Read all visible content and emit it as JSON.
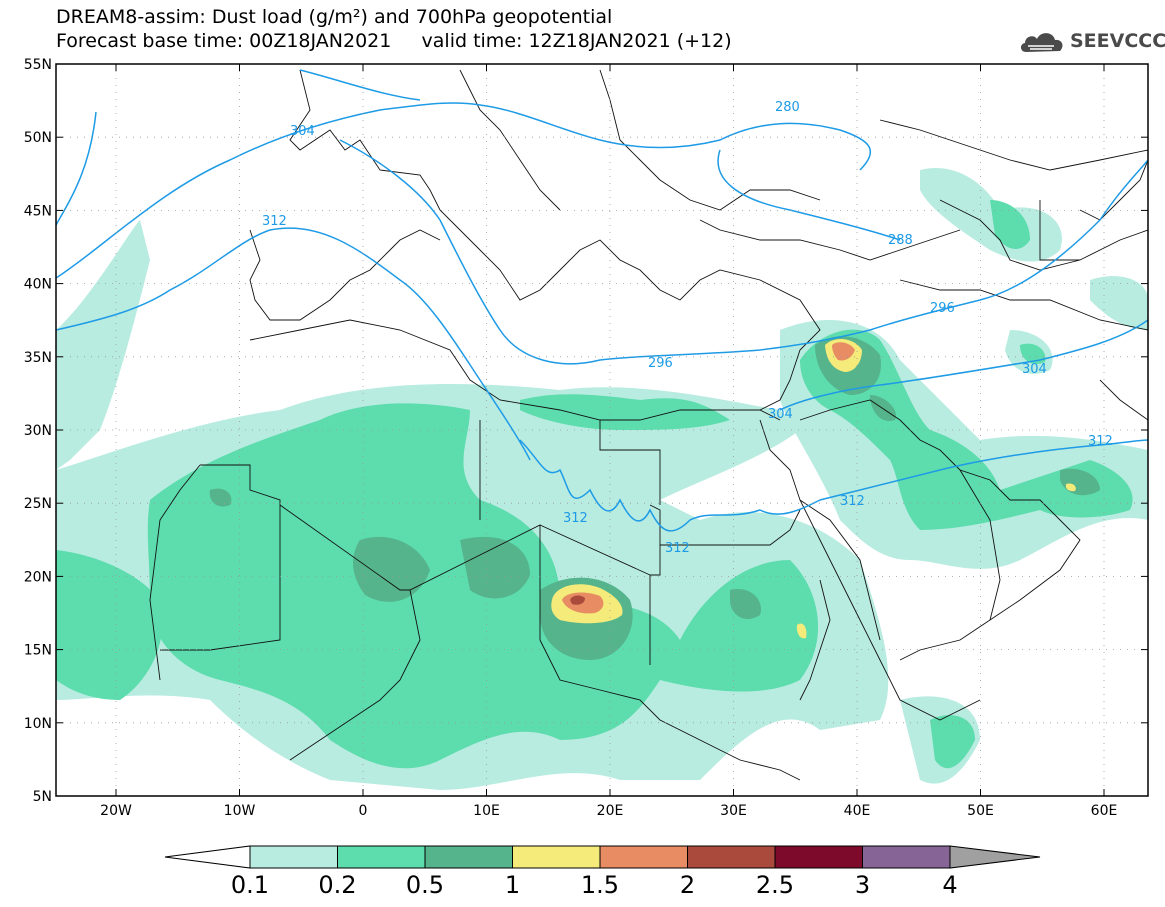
{
  "header": {
    "title_line1": "DREAM8-assim: Dust load (g/m²) and 700hPa geopotential",
    "title_line2": "Forecast base time: 00Z18JAN2021     valid time: 12Z18JAN2021 (+12)"
  },
  "logo": {
    "text": "SEEVCCC",
    "icon": "cloud-icon",
    "color": "#4a4a4a"
  },
  "map": {
    "lat_labels": [
      "55N",
      "50N",
      "45N",
      "40N",
      "35N",
      "30N",
      "25N",
      "20N",
      "15N",
      "10N",
      "5N"
    ],
    "lon_labels": [
      "20W",
      "10W",
      "0",
      "10E",
      "20E",
      "30E",
      "40E",
      "50E",
      "60E"
    ],
    "contour_labels": [
      "280",
      "288",
      "296",
      "304",
      "312"
    ],
    "contour_color": "#1e9be6"
  },
  "colorbar": {
    "labels": [
      "0.1",
      "0.2",
      "0.5",
      "1",
      "1.5",
      "2",
      "2.5",
      "3",
      "4"
    ],
    "colors": [
      "#b8ece0",
      "#5ddcad",
      "#55b48c",
      "#f5eb7a",
      "#e88c64",
      "#aa4a3c",
      "#7d0a2a",
      "#876496"
    ],
    "under_color": "#ffffff",
    "over_color": "#a0a0a0"
  }
}
